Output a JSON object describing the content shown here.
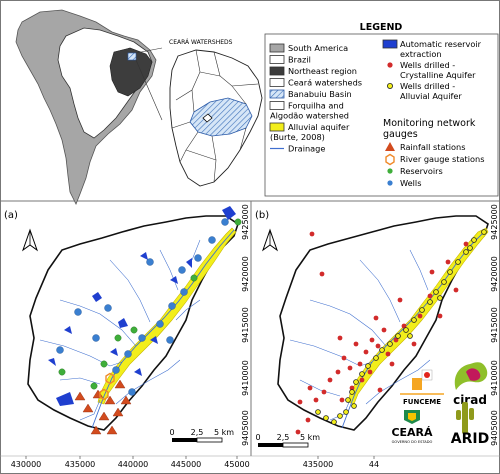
{
  "legend": {
    "title": "LEGEND",
    "col1": [
      {
        "label": "South America",
        "swatch": "#a6a6a6",
        "kind": "box"
      },
      {
        "label": "Brazil",
        "swatch": "#ffffff",
        "kind": "box"
      },
      {
        "label": "Northeast region",
        "swatch": "#3d3d3d",
        "kind": "box"
      },
      {
        "label": "Ceará watersheds",
        "swatch": "#ffffff",
        "kind": "box"
      },
      {
        "label": "Banabuiu Basin",
        "swatch": "#d6e6f7",
        "kind": "hatch"
      },
      {
        "label": "Forquilha and",
        "label2": "Algodão watershed",
        "swatch": "#ffffff",
        "kind": "box"
      },
      {
        "label": "Alluvial aquifer",
        "label2": "(Burte, 2008)",
        "swatch": "#f2ee1b",
        "kind": "box"
      },
      {
        "label": "Drainage",
        "swatch": "#3f6fcf",
        "kind": "line"
      }
    ],
    "col2": [
      {
        "label": "Automatic reservoir",
        "label2": "extraction",
        "swatch": "#1f3fcf",
        "kind": "box"
      },
      {
        "label": "Wells drilled -",
        "label2": "Crystalline Aquifer",
        "swatch": "#d22b2b",
        "kind": "dot"
      },
      {
        "label": "Wells drilled -",
        "label2": "Alluvial Aquifer",
        "swatch": "#f2ee1b",
        "kind": "ring"
      }
    ],
    "network_heading": "Monitoring network",
    "network_heading2": "gauges",
    "network": [
      {
        "label": "Rainfall stations",
        "swatch": "#d24b1e",
        "kind": "triangle"
      },
      {
        "label": "River gauge stations",
        "swatch": "#f08a2a",
        "kind": "hexagon"
      },
      {
        "label": "Reservoirs",
        "swatch": "#3fae3a",
        "kind": "dot"
      },
      {
        "label": "Wells",
        "swatch": "#3a7fd0",
        "kind": "dot"
      }
    ]
  },
  "inset": {
    "title": "CEARÁ WATERSHEDS",
    "colors": {
      "sa": "#a6a6a6",
      "brazil": "#ffffff",
      "northeast": "#3d3d3d",
      "basin": "#d6e6f7"
    }
  },
  "panel_a": {
    "label": "(a)",
    "xticks": [
      "430000",
      "435000",
      "440000",
      "445000",
      "45000"
    ],
    "yticks": [
      "9425000",
      "9420000",
      "9415000",
      "9410000",
      "9405000"
    ],
    "scale": {
      "zero": "0",
      "mid": "2,5",
      "end": "5 km"
    }
  },
  "panel_b": {
    "label": "(b)",
    "xticks": [
      "435000",
      "44"
    ],
    "yticks": [
      "9425000",
      "9420000",
      "9415000",
      "9410000",
      "9405000"
    ],
    "scale": {
      "zero": "0",
      "mid": "2,5",
      "end": "5 km"
    }
  },
  "logos": {
    "funceme": "FUNCEME",
    "cirad": "cirad",
    "ceara": "CEARÁ",
    "ceara_sub": "GOVERNO DO ESTADO",
    "arid": "ARID"
  },
  "colors": {
    "alluvial": "#f2ee1b",
    "drainage": "#3f6fcf",
    "reservoir_water": "#1f3fcf",
    "rainfall": "#d24b1e",
    "river_gauge": "#f08a2a",
    "reservoir_gauge": "#3fae3a",
    "wells_gauge": "#3a7fd0",
    "well_crystalline": "#d22b2b"
  }
}
